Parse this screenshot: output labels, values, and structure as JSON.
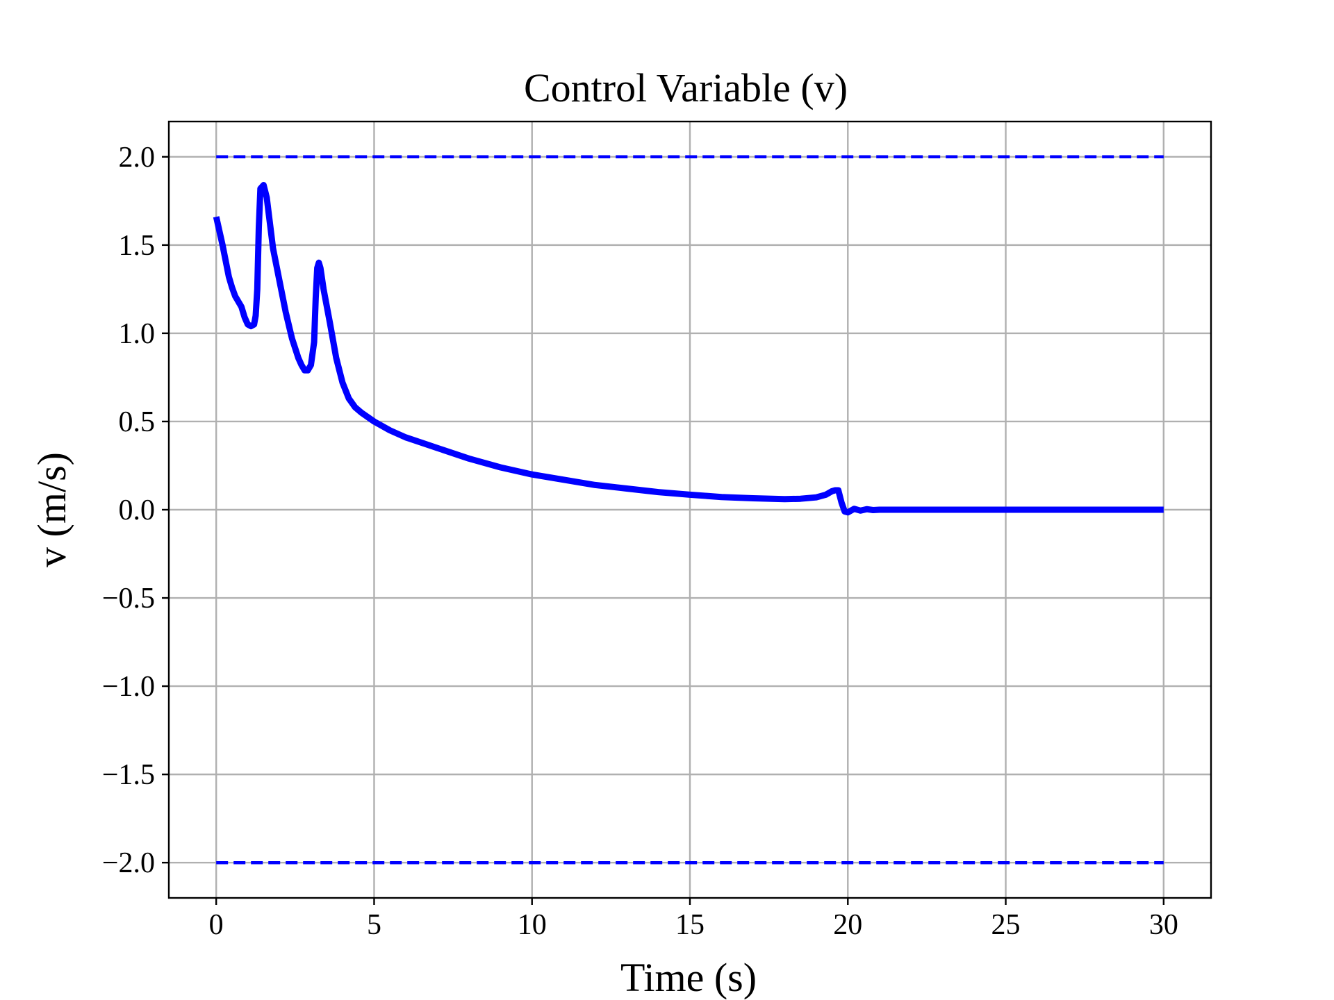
{
  "chart_data": {
    "type": "line",
    "title": "Control Variable (v)",
    "xlabel": "Time (s)",
    "ylabel": "v (m/s)",
    "xlim": [
      -1.5,
      31.5
    ],
    "ylim": [
      -2.2,
      2.2
    ],
    "grid": true,
    "x_ticks": [
      0,
      5,
      10,
      15,
      20,
      25,
      30
    ],
    "x_tick_labels": [
      "0",
      "5",
      "10",
      "15",
      "20",
      "25",
      "30"
    ],
    "y_ticks": [
      2.0,
      1.5,
      1.0,
      0.5,
      0.0,
      -0.5,
      -1.0,
      -1.5,
      -2.0
    ],
    "y_tick_labels": [
      "2.0",
      "1.5",
      "1.0",
      "0.5",
      "0.0",
      "−0.5",
      "−1.0",
      "−1.5",
      "−2.0"
    ],
    "series": [
      {
        "style": "solid",
        "color": "#0000ff",
        "x": [
          0,
          0.2,
          0.4,
          0.5,
          0.6,
          0.8,
          0.9,
          1.0,
          1.1,
          1.2,
          1.25,
          1.3,
          1.35,
          1.4,
          1.5,
          1.6,
          1.8,
          2.0,
          2.2,
          2.4,
          2.6,
          2.7,
          2.8,
          2.9,
          3.0,
          3.1,
          3.15,
          3.2,
          3.25,
          3.3,
          3.4,
          3.6,
          3.8,
          4.0,
          4.2,
          4.4,
          4.6,
          5.0,
          5.5,
          6.0,
          7.0,
          8.0,
          9.0,
          10.0,
          11.0,
          12.0,
          13.0,
          14.0,
          15.0,
          16.0,
          17.0,
          18.0,
          18.5,
          19.0,
          19.3,
          19.5,
          19.6,
          19.7,
          19.8,
          19.9,
          20.0,
          20.2,
          20.4,
          20.6,
          20.8,
          21.0,
          22.0,
          25.0,
          30.0
        ],
        "y": [
          1.66,
          1.5,
          1.32,
          1.26,
          1.21,
          1.15,
          1.09,
          1.05,
          1.04,
          1.05,
          1.1,
          1.25,
          1.6,
          1.82,
          1.84,
          1.77,
          1.48,
          1.3,
          1.12,
          0.97,
          0.86,
          0.82,
          0.79,
          0.79,
          0.82,
          0.95,
          1.2,
          1.37,
          1.4,
          1.37,
          1.25,
          1.06,
          0.86,
          0.72,
          0.63,
          0.58,
          0.55,
          0.5,
          0.45,
          0.41,
          0.35,
          0.29,
          0.24,
          0.2,
          0.17,
          0.14,
          0.12,
          0.1,
          0.085,
          0.072,
          0.065,
          0.06,
          0.062,
          0.07,
          0.085,
          0.105,
          0.11,
          0.11,
          0.04,
          -0.01,
          -0.015,
          0.005,
          -0.005,
          0.003,
          -0.002,
          0.0,
          0.0,
          0.0,
          0.0
        ]
      },
      {
        "style": "dashed",
        "color": "#0000ff",
        "x": [
          0,
          30
        ],
        "y": [
          2.0,
          2.0
        ]
      },
      {
        "style": "dashed",
        "color": "#0000ff",
        "x": [
          0,
          30
        ],
        "y": [
          -2.0,
          -2.0
        ]
      }
    ]
  }
}
